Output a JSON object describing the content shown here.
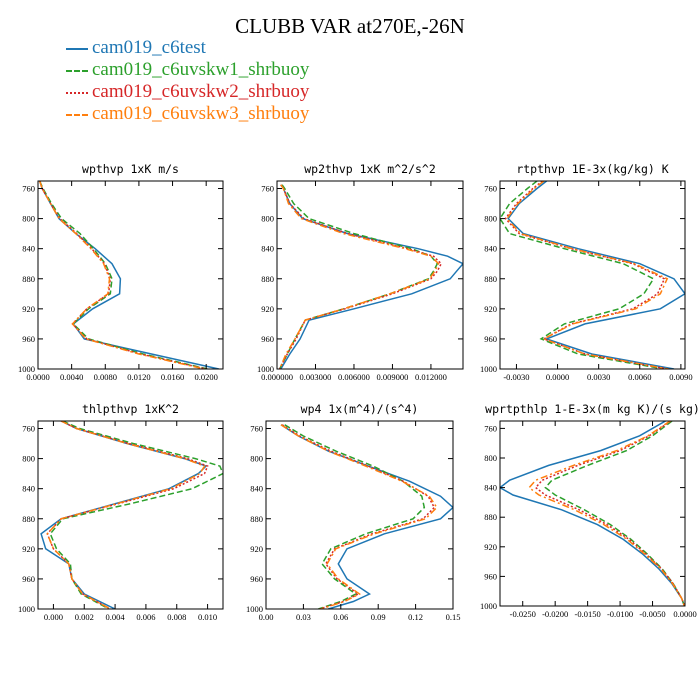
{
  "figure": {
    "title": "CLUBB VAR at270E,-26N"
  },
  "legend": [
    {
      "name": "cam019_c6test",
      "color": "#1f77b4",
      "dash": "solid"
    },
    {
      "name": "cam019_c6uvskw1_shrbuoy",
      "color": "#2ca02c",
      "dash": "dashed"
    },
    {
      "name": "cam019_c6uvskw2_shrbuoy",
      "color": "#d62728",
      "dash": "dotted"
    },
    {
      "name": "cam019_c6uvskw3_shrbuoy",
      "color": "#ff7f0e",
      "dash": "dashdot"
    }
  ],
  "chart_data": [
    {
      "type": "line",
      "title": "wpthvp  1xK m/s",
      "xlim": [
        0,
        0.022
      ],
      "xticks": [
        0.0,
        0.004,
        0.008,
        0.012,
        0.016,
        0.02
      ],
      "xtick_labels": [
        "0.0000",
        "0.0040",
        "0.0080",
        "0.0120",
        "0.0160",
        "0.0200"
      ],
      "ylim": [
        1000,
        750
      ],
      "yticks": [
        760,
        800,
        840,
        880,
        920,
        960,
        1000
      ],
      "y": [
        750,
        760,
        780,
        800,
        820,
        840,
        860,
        880,
        900,
        920,
        940,
        960,
        980,
        1000
      ],
      "series": [
        {
          "name": "cam019_c6test",
          "values": [
            0.0002,
            0.0005,
            0.0015,
            0.0025,
            0.0045,
            0.0068,
            0.0088,
            0.0098,
            0.0097,
            0.0065,
            0.0042,
            0.0055,
            0.0135,
            0.0215
          ]
        },
        {
          "name": "cam019_c6uvskw1_shrbuoy",
          "values": [
            0.0002,
            0.0006,
            0.0016,
            0.0028,
            0.005,
            0.0066,
            0.008,
            0.0088,
            0.0086,
            0.006,
            0.0042,
            0.006,
            0.0125,
            0.0202
          ]
        },
        {
          "name": "cam019_c6uvskw2_shrbuoy",
          "values": [
            0.0002,
            0.0005,
            0.0015,
            0.0026,
            0.0046,
            0.0064,
            0.0079,
            0.0086,
            0.0084,
            0.0058,
            0.0041,
            0.0058,
            0.0122,
            0.02
          ]
        },
        {
          "name": "cam019_c6uvskw3_shrbuoy",
          "values": [
            0.0002,
            0.0005,
            0.0015,
            0.0025,
            0.0045,
            0.0063,
            0.0078,
            0.0085,
            0.0083,
            0.0058,
            0.0041,
            0.0057,
            0.012,
            0.0198
          ]
        }
      ]
    },
    {
      "type": "line",
      "title": "wp2thvp  1xK m^2/s^2",
      "xlim": [
        0,
        0.0145
      ],
      "xticks": [
        0.0,
        0.003,
        0.006,
        0.009,
        0.012
      ],
      "xtick_labels": [
        "0.000000",
        "0.003000",
        "0.006000",
        "0.009000",
        "0.012000"
      ],
      "ylim": [
        1000,
        750
      ],
      "yticks": [
        760,
        800,
        840,
        880,
        920,
        960,
        1000
      ],
      "y": [
        755,
        760,
        780,
        800,
        820,
        840,
        850,
        860,
        870,
        880,
        900,
        920,
        935,
        960,
        980,
        1000
      ],
      "series": [
        {
          "name": "cam019_c6test",
          "values": [
            0.0003,
            0.0005,
            0.001,
            0.002,
            0.0055,
            0.011,
            0.0133,
            0.0145,
            0.014,
            0.0135,
            0.0105,
            0.006,
            0.0025,
            0.0018,
            0.001,
            0.0003
          ]
        },
        {
          "name": "cam019_c6uvskw1_shrbuoy",
          "values": [
            0.0004,
            0.0006,
            0.0013,
            0.0025,
            0.006,
            0.0105,
            0.012,
            0.0125,
            0.0122,
            0.0118,
            0.0088,
            0.0052,
            0.0022,
            0.0014,
            0.0008,
            0.0002
          ]
        },
        {
          "name": "cam019_c6uvskw2_shrbuoy",
          "values": [
            0.0003,
            0.0005,
            0.001,
            0.0021,
            0.0055,
            0.0102,
            0.0122,
            0.0128,
            0.0125,
            0.012,
            0.009,
            0.0053,
            0.0022,
            0.0015,
            0.0008,
            0.0002
          ]
        },
        {
          "name": "cam019_c6uvskw3_shrbuoy",
          "values": [
            0.0003,
            0.0005,
            0.0009,
            0.0019,
            0.0052,
            0.01,
            0.012,
            0.0126,
            0.0123,
            0.0119,
            0.0088,
            0.0052,
            0.0022,
            0.0014,
            0.0007,
            0.0002
          ]
        }
      ]
    },
    {
      "type": "line",
      "title": "rtpthvp  1E-3x(kg/kg) K",
      "xlim": [
        -0.0042,
        0.0093
      ],
      "xticks": [
        -0.003,
        0.0,
        0.003,
        0.006,
        0.009
      ],
      "xtick_labels": [
        "-0.0030",
        "0.0000",
        "0.0030",
        "0.0060",
        "0.0090"
      ],
      "ylim": [
        1000,
        750
      ],
      "yticks": [
        760,
        800,
        840,
        880,
        920,
        960,
        1000
      ],
      "y": [
        750,
        760,
        780,
        800,
        820,
        840,
        860,
        880,
        900,
        920,
        940,
        960,
        980,
        1000
      ],
      "series": [
        {
          "name": "cam019_c6test",
          "values": [
            -0.0008,
            -0.0015,
            -0.0028,
            -0.0036,
            -0.0025,
            0.0015,
            0.006,
            0.0085,
            0.0093,
            0.0075,
            0.002,
            -0.0008,
            0.0025,
            0.0085
          ]
        },
        {
          "name": "cam019_c6uvskw1_shrbuoy",
          "values": [
            -0.0015,
            -0.0022,
            -0.0035,
            -0.0042,
            -0.0035,
            0.0005,
            0.0048,
            0.007,
            0.0063,
            0.0045,
            0.0005,
            -0.0012,
            0.0015,
            0.0078
          ]
        },
        {
          "name": "cam019_c6uvskw2_shrbuoy",
          "values": [
            -0.0011,
            -0.0018,
            -0.003,
            -0.0038,
            -0.0028,
            0.001,
            0.0055,
            0.0078,
            0.0073,
            0.0055,
            0.001,
            -0.001,
            0.002,
            0.008
          ]
        },
        {
          "name": "cam019_c6uvskw3_shrbuoy",
          "values": [
            -0.001,
            -0.0017,
            -0.0029,
            -0.0037,
            -0.0027,
            0.0011,
            0.0056,
            0.008,
            0.0075,
            0.0057,
            0.0011,
            -0.001,
            0.002,
            0.0081
          ]
        }
      ]
    },
    {
      "type": "line",
      "title": "thlpthvp  1xK^2",
      "xlim": [
        -0.001,
        0.011
      ],
      "xticks": [
        0.0,
        0.002,
        0.004,
        0.006,
        0.008,
        0.01
      ],
      "xtick_labels": [
        "0.000",
        "0.002",
        "0.004",
        "0.006",
        "0.008",
        "0.010"
      ],
      "ylim": [
        1000,
        750
      ],
      "yticks": [
        760,
        800,
        840,
        880,
        920,
        960,
        1000
      ],
      "y": [
        750,
        760,
        780,
        800,
        810,
        820,
        840,
        860,
        880,
        900,
        920,
        940,
        960,
        980,
        1000
      ],
      "series": [
        {
          "name": "cam019_c6test",
          "values": [
            0.0005,
            0.0015,
            0.0048,
            0.0085,
            0.0099,
            0.0094,
            0.0075,
            0.004,
            0.0005,
            -0.0008,
            -0.0005,
            0.001,
            0.0012,
            0.002,
            0.004
          ]
        },
        {
          "name": "cam019_c6uvskw1_shrbuoy",
          "values": [
            0.0006,
            0.0017,
            0.0052,
            0.0092,
            0.0108,
            0.011,
            0.009,
            0.005,
            0.0006,
            -0.0002,
            0.0002,
            0.0011,
            0.0012,
            0.0018,
            0.0036
          ]
        },
        {
          "name": "cam019_c6uvskw2_shrbuoy",
          "values": [
            0.0005,
            0.0015,
            0.0049,
            0.0087,
            0.01,
            0.0098,
            0.0078,
            0.0042,
            0.0005,
            -0.0004,
            0.0,
            0.001,
            0.0012,
            0.0019,
            0.0037
          ]
        },
        {
          "name": "cam019_c6uvskw3_shrbuoy",
          "values": [
            0.0005,
            0.0015,
            0.0048,
            0.0085,
            0.0098,
            0.0095,
            0.0076,
            0.0041,
            0.0005,
            -0.0004,
            0.0,
            0.001,
            0.0012,
            0.0019,
            0.0037
          ]
        }
      ]
    },
    {
      "type": "line",
      "title": "wp4  1x(m^4)/(s^4)",
      "xlim": [
        0,
        0.15
      ],
      "xticks": [
        0.0,
        0.03,
        0.06,
        0.09,
        0.12,
        0.15
      ],
      "xtick_labels": [
        "0.00",
        "0.03",
        "0.06",
        "0.09",
        "0.12",
        "0.15"
      ],
      "ylim": [
        1000,
        750
      ],
      "yticks": [
        760,
        800,
        840,
        880,
        920,
        960,
        1000
      ],
      "y": [
        755,
        770,
        790,
        810,
        830,
        850,
        865,
        880,
        900,
        920,
        940,
        960,
        980,
        990,
        1000
      ],
      "series": [
        {
          "name": "cam019_c6test",
          "values": [
            0.012,
            0.026,
            0.05,
            0.082,
            0.115,
            0.14,
            0.15,
            0.14,
            0.095,
            0.065,
            0.058,
            0.065,
            0.083,
            0.07,
            0.05
          ]
        },
        {
          "name": "cam019_c6uvskw1_shrbuoy",
          "values": [
            0.015,
            0.03,
            0.056,
            0.086,
            0.11,
            0.125,
            0.127,
            0.118,
            0.08,
            0.052,
            0.045,
            0.055,
            0.072,
            0.06,
            0.042
          ]
        },
        {
          "name": "cam019_c6uvskw2_shrbuoy",
          "values": [
            0.013,
            0.027,
            0.052,
            0.082,
            0.11,
            0.13,
            0.135,
            0.126,
            0.085,
            0.055,
            0.048,
            0.057,
            0.074,
            0.062,
            0.043
          ]
        },
        {
          "name": "cam019_c6uvskw3_shrbuoy",
          "values": [
            0.012,
            0.026,
            0.05,
            0.08,
            0.109,
            0.131,
            0.137,
            0.128,
            0.087,
            0.056,
            0.049,
            0.058,
            0.075,
            0.063,
            0.044
          ]
        }
      ]
    },
    {
      "type": "line",
      "title": "wprtpthlp  1-E-3x(m kg K)/(s kg)",
      "xlim": [
        -0.0285,
        0.0
      ],
      "xticks": [
        -0.025,
        -0.02,
        -0.015,
        -0.01,
        -0.005,
        0.0
      ],
      "xtick_labels": [
        "-0.0250",
        "-0.0200",
        "-0.0150",
        "-0.0100",
        "-0.0050",
        "0.0000"
      ],
      "ylim": [
        1000,
        750
      ],
      "yticks": [
        760,
        800,
        840,
        880,
        920,
        960,
        1000
      ],
      "y": [
        750,
        770,
        790,
        810,
        830,
        840,
        850,
        870,
        890,
        910,
        930,
        950,
        970,
        990,
        1000
      ],
      "series": [
        {
          "name": "cam019_c6test",
          "values": [
            -0.003,
            -0.007,
            -0.013,
            -0.021,
            -0.027,
            -0.0285,
            -0.0265,
            -0.019,
            -0.0135,
            -0.0095,
            -0.0065,
            -0.004,
            -0.002,
            -0.0005,
            -0.0001
          ]
        },
        {
          "name": "cam019_c6uvskw1_shrbuoy",
          "values": [
            -0.002,
            -0.005,
            -0.009,
            -0.015,
            -0.0205,
            -0.0215,
            -0.02,
            -0.0155,
            -0.0115,
            -0.0083,
            -0.0058,
            -0.0035,
            -0.0018,
            -0.0005,
            -0.0001
          ]
        },
        {
          "name": "cam019_c6uvskw2_shrbuoy",
          "values": [
            -0.0022,
            -0.0055,
            -0.01,
            -0.0165,
            -0.022,
            -0.023,
            -0.0215,
            -0.0163,
            -0.012,
            -0.0086,
            -0.006,
            -0.0036,
            -0.0018,
            -0.0005,
            -0.0001
          ]
        },
        {
          "name": "cam019_c6uvskw3_shrbuoy",
          "values": [
            -0.0023,
            -0.0057,
            -0.0105,
            -0.0172,
            -0.023,
            -0.024,
            -0.0225,
            -0.017,
            -0.0125,
            -0.0089,
            -0.0062,
            -0.0037,
            -0.0019,
            -0.0005,
            -0.0001
          ]
        }
      ]
    }
  ]
}
